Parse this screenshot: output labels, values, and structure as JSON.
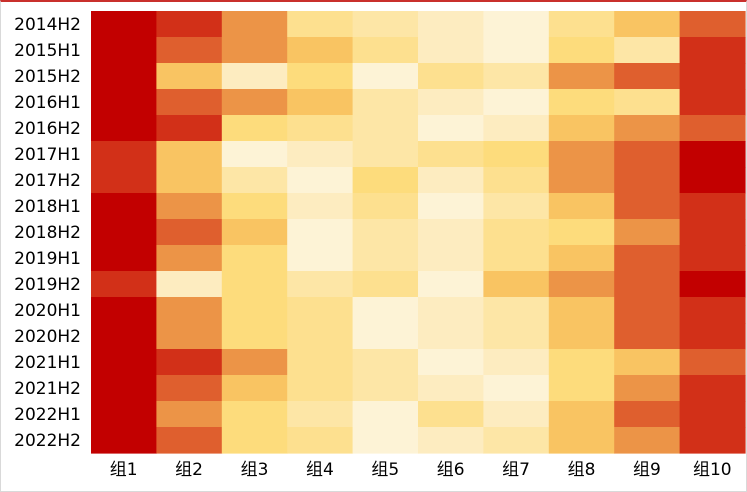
{
  "chart_data": {
    "type": "heatmap",
    "x_categories": [
      "组1",
      "组2",
      "组3",
      "组4",
      "组5",
      "组6",
      "组7",
      "组8",
      "组9",
      "组10"
    ],
    "y_categories": [
      "2014H2",
      "2015H1",
      "2015H2",
      "2016H1",
      "2016H2",
      "2017H1",
      "2017H2",
      "2018H1",
      "2018H2",
      "2019H1",
      "2019H2",
      "2020H1",
      "2020H2",
      "2021H1",
      "2021H2",
      "2022H1",
      "2022H2"
    ],
    "values": [
      [
        10,
        9,
        7,
        4,
        3,
        2,
        1,
        4,
        6,
        8
      ],
      [
        10,
        8,
        7,
        6,
        4,
        2,
        1,
        5,
        3,
        9
      ],
      [
        10,
        6,
        2,
        5,
        1,
        4,
        3,
        7,
        8,
        9
      ],
      [
        10,
        8,
        7,
        6,
        3,
        2,
        1,
        5,
        4,
        9
      ],
      [
        10,
        9,
        5,
        4,
        3,
        1,
        2,
        6,
        7,
        8
      ],
      [
        9,
        6,
        1,
        2,
        3,
        4,
        5,
        7,
        8,
        10
      ],
      [
        9,
        6,
        3,
        1,
        5,
        2,
        4,
        7,
        8,
        10
      ],
      [
        10,
        7,
        5,
        2,
        4,
        1,
        3,
        6,
        8,
        9
      ],
      [
        10,
        8,
        6,
        1,
        3,
        2,
        4,
        5,
        7,
        9
      ],
      [
        10,
        7,
        5,
        1,
        3,
        2,
        4,
        6,
        8,
        9
      ],
      [
        9,
        2,
        5,
        3,
        4,
        1,
        6,
        7,
        8,
        10
      ],
      [
        10,
        7,
        5,
        4,
        1,
        2,
        3,
        6,
        8,
        9
      ],
      [
        10,
        7,
        5,
        4,
        1,
        2,
        3,
        6,
        8,
        9
      ],
      [
        10,
        9,
        7,
        4,
        3,
        1,
        2,
        5,
        6,
        8
      ],
      [
        10,
        8,
        6,
        4,
        3,
        2,
        1,
        5,
        7,
        9
      ],
      [
        10,
        7,
        5,
        3,
        1,
        4,
        2,
        6,
        8,
        9
      ],
      [
        10,
        8,
        5,
        4,
        1,
        2,
        3,
        6,
        7,
        9
      ]
    ],
    "color_scale": [
      "#fdf3d6",
      "#fdecc0",
      "#fde6a6",
      "#fde08f",
      "#fddc7c",
      "#f9c462",
      "#ec9447",
      "#df5f2e",
      "#d23018",
      "#c20000"
    ],
    "value_range": [
      1,
      10
    ],
    "grid": false,
    "legend": "none"
  }
}
